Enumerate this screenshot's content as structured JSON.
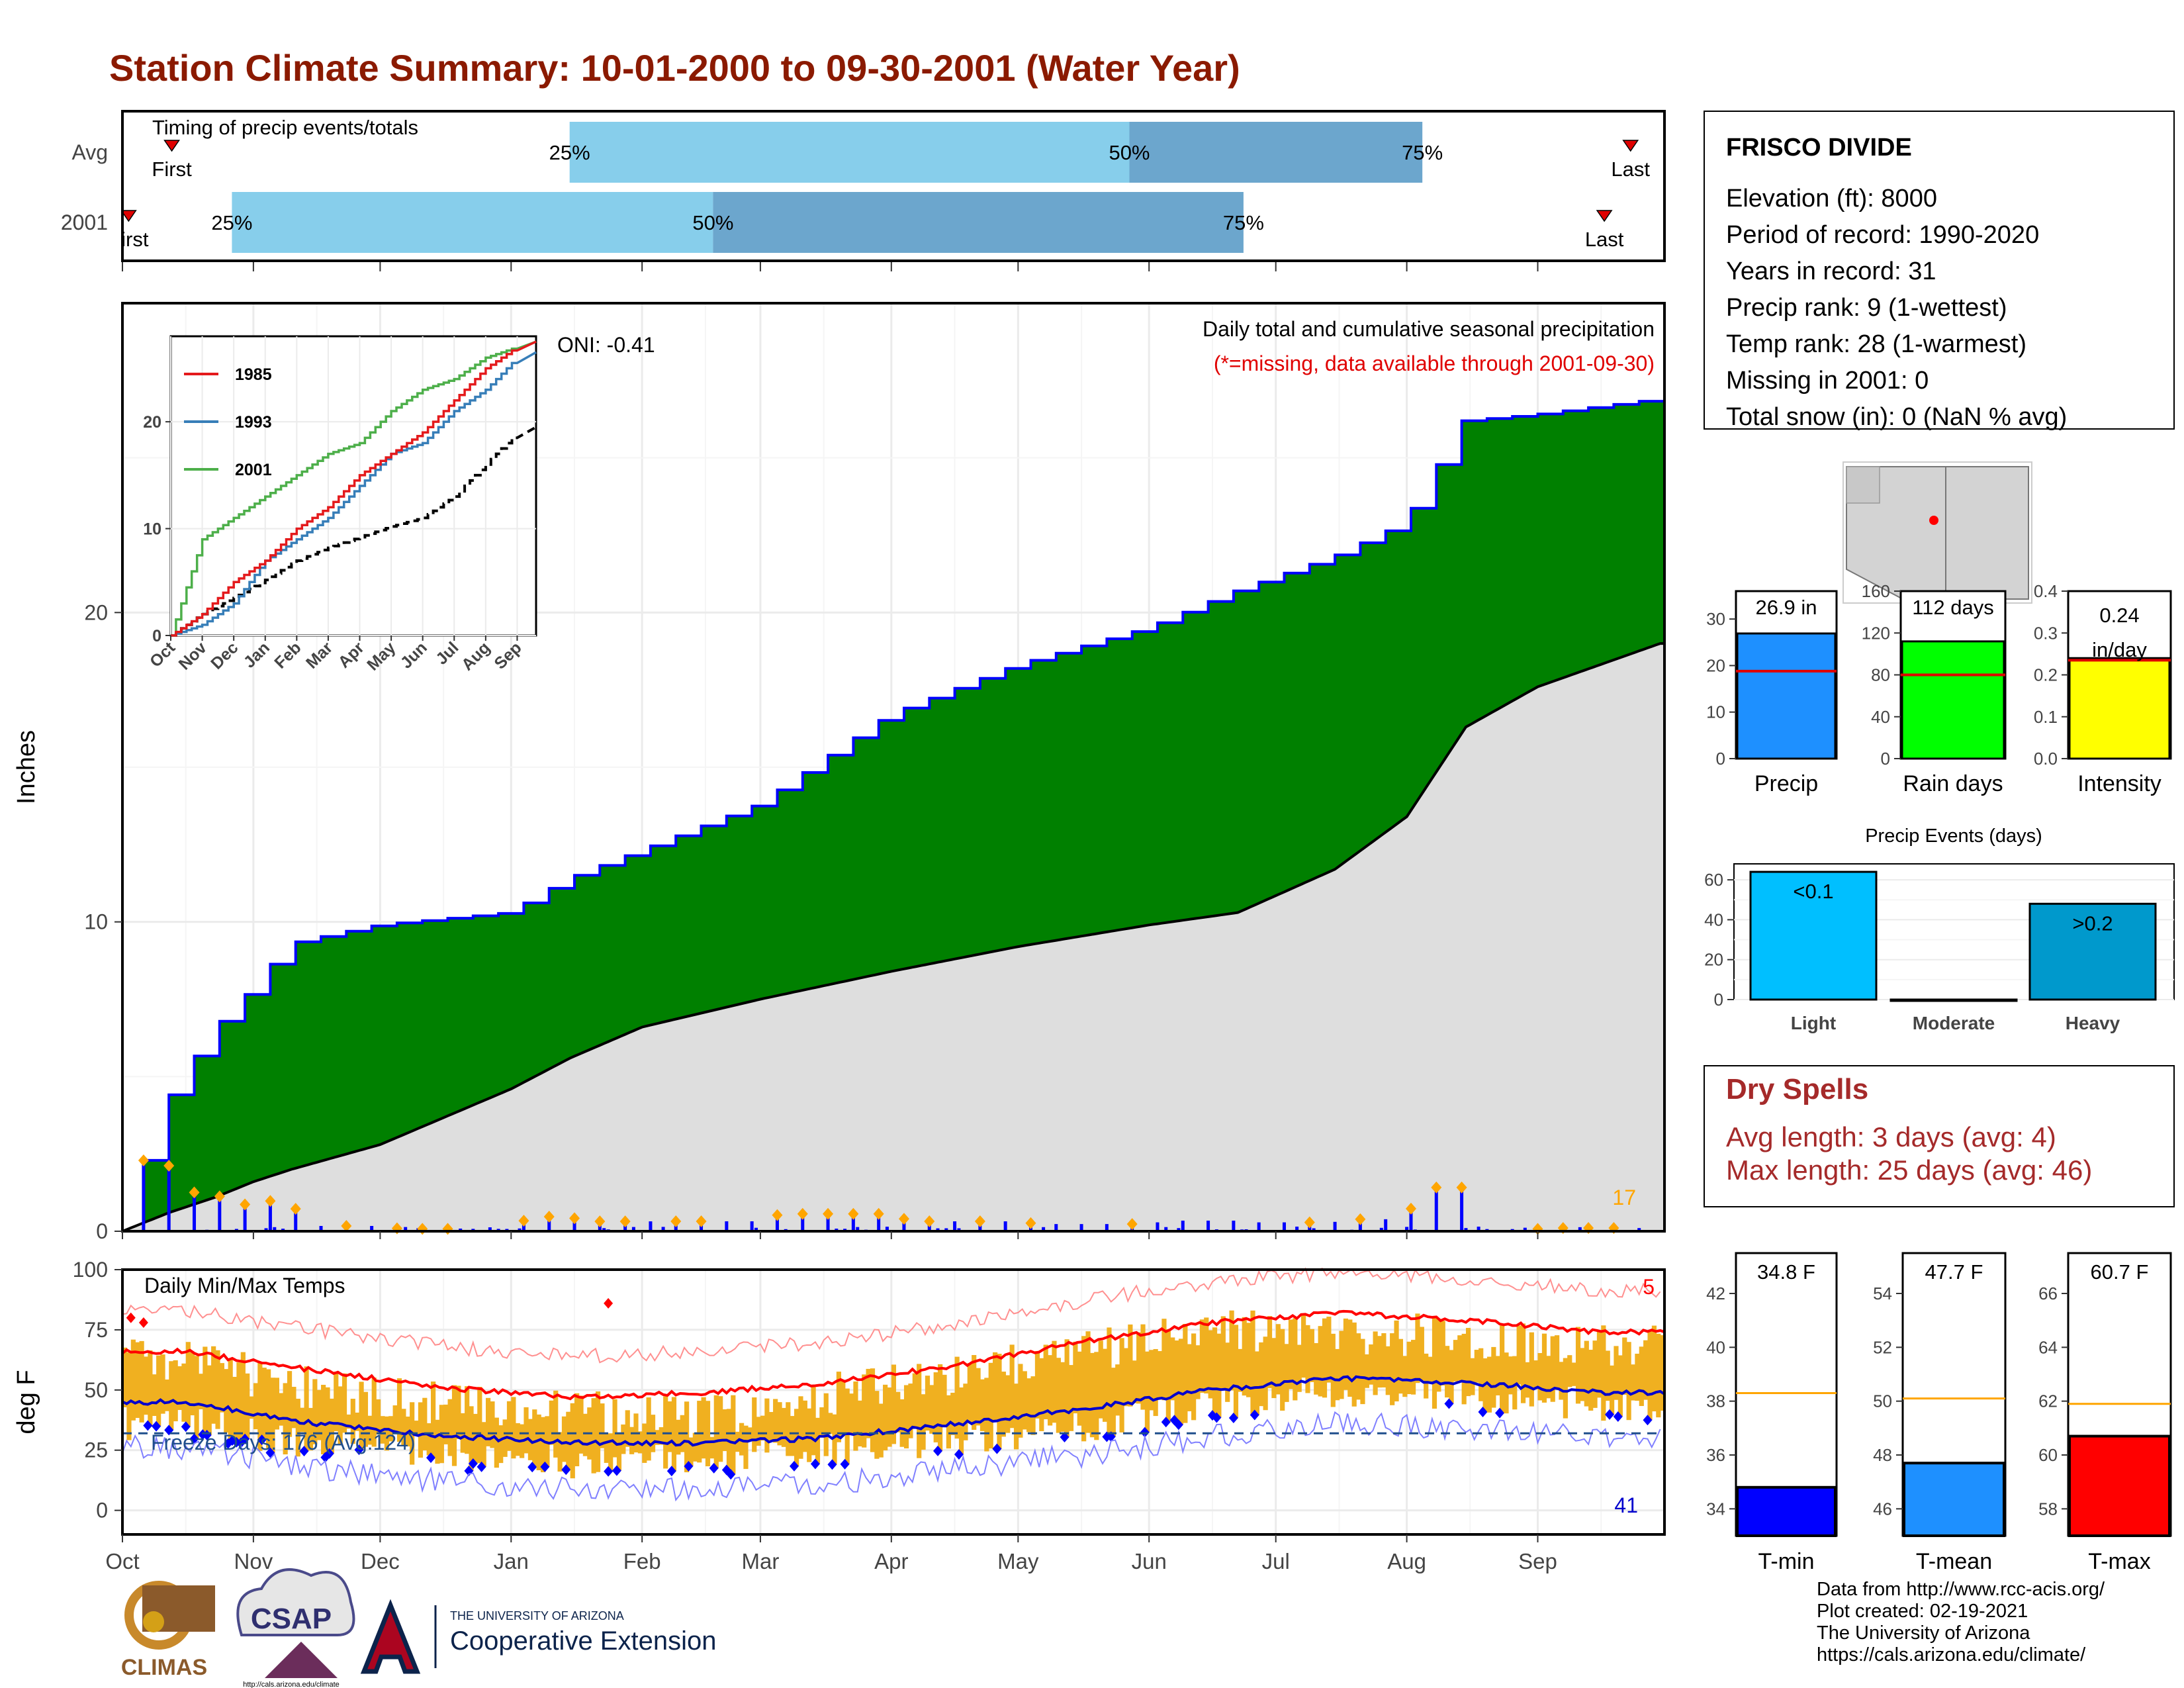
{
  "title": "Station Climate Summary: 10-01-2000 to 09-30-2001 (Water Year)",
  "timing": {
    "title": "Timing of precip events/totals",
    "rows": [
      {
        "label": "Avg",
        "first": 0.032,
        "p25": 0.29,
        "p50": 0.653,
        "p75": 0.843,
        "last": 0.978
      },
      {
        "label": "2001",
        "first": 0.004,
        "p25": 0.071,
        "p50": 0.383,
        "p75": 0.727,
        "last": 0.961
      }
    ],
    "pct_labels": [
      "25%",
      "50%",
      "75%"
    ],
    "first_label": "First",
    "last_label": "Last"
  },
  "station": {
    "name": "FRISCO DIVIDE",
    "lines": [
      "Elevation (ft): 8000",
      "Period of record: 1990-2020",
      "Years in record: 31",
      "Precip rank: 9 (1-wettest)",
      "Temp rank: 28 (1-warmest)",
      "Missing in 2001: 0",
      "Total snow (in): 0 (NaN % avg)"
    ]
  },
  "precip_panel": {
    "ylabel": "Inches",
    "oni": "ONI: -0.41",
    "subtitle": "Daily total and cumulative seasonal precipitation",
    "missing_note": "(*=missing, data available through 2001-09-30)",
    "count_label": "17",
    "yticks": [
      0,
      10,
      20
    ]
  },
  "inset": {
    "xticks": [
      "Oct",
      "Nov",
      "Dec",
      "Jan",
      "Feb",
      "Mar",
      "Apr",
      "May",
      "Jun",
      "Jul",
      "Aug",
      "Sep"
    ],
    "yticks": [
      0,
      10,
      20
    ],
    "legend": [
      "1985",
      "1993",
      "2001"
    ]
  },
  "temp_panel": {
    "ylabel": "deg F",
    "title": "Daily Min/Max Temps",
    "freeze_label": "Freeze Days: 176 (Avg:124)",
    "hot_count": "5",
    "cold_count": "41",
    "yticks": [
      0,
      25,
      50,
      75,
      100
    ]
  },
  "months": [
    "Oct",
    "Nov",
    "Dec",
    "Jan",
    "Feb",
    "Mar",
    "Apr",
    "May",
    "Jun",
    "Jul",
    "Aug",
    "Sep"
  ],
  "summary_bars": [
    {
      "label": "Precip",
      "value": 26.9,
      "value_label": "26.9 in",
      "avg": 18.8,
      "ticks": [
        0,
        10,
        20,
        30
      ],
      "color": "#1E90FF"
    },
    {
      "label": "Rain days",
      "value": 112,
      "value_label": "112 days",
      "avg": 80,
      "ticks": [
        0,
        40,
        80,
        120,
        160
      ],
      "color": "#00FF00"
    },
    {
      "label": "Intensity",
      "value": 0.24,
      "value_label": "0.24 in/day",
      "avg": 0.235,
      "ticks": [
        "0.0",
        "0.1",
        "0.2",
        "0.3",
        "0.4"
      ],
      "color": "#FFFF00"
    }
  ],
  "precip_events": {
    "title": "Precip Events (days)",
    "categories": [
      "Light",
      "Moderate",
      "Heavy"
    ],
    "values": [
      64,
      0,
      48
    ],
    "bar_labels": [
      "<0.1",
      "",
      ">0.2"
    ],
    "yticks": [
      0,
      20,
      40,
      60
    ]
  },
  "dry_spells": {
    "title": "Dry Spells",
    "avg_line": "Avg length: 3 days (avg: 4)",
    "max_line": "Max length: 25 days (avg: 46)"
  },
  "temp_bars": [
    {
      "label": "T-min",
      "value": 34.8,
      "value_label": "34.8 F",
      "avg": 38.3,
      "ticks": [
        34,
        36,
        38,
        40,
        42
      ],
      "color": "#0000FF"
    },
    {
      "label": "T-mean",
      "value": 47.7,
      "value_label": "47.7 F",
      "avg": 50.1,
      "ticks": [
        46,
        48,
        50,
        52,
        54
      ],
      "color": "#1E90FF"
    },
    {
      "label": "T-max",
      "value": 60.7,
      "value_label": "60.7 F",
      "avg": 61.9,
      "ticks": [
        58,
        60,
        62,
        64,
        66
      ],
      "color": "#FF0000"
    }
  ],
  "logos": {
    "climas": "CLIMAS",
    "csap": "CSAP",
    "csap_url": "http://cals.arizona.edu/climate",
    "ua_small": "THE UNIVERSITY OF ARIZONA",
    "ua_large": "Cooperative Extension"
  },
  "footer": [
    "Data from http://www.rcc-acis.org/",
    "Plot created: 02-19-2021",
    "The University of Arizona",
    "https://cals.arizona.edu/climate/"
  ],
  "chart_data": [
    {
      "type": "area",
      "title": "Daily total and cumulative seasonal precipitation",
      "ylabel": "Inches",
      "ylim": [
        0,
        30
      ],
      "x": [
        "2000-10-01",
        "2000-10-12",
        "2000-10-23",
        "2000-11-01",
        "2000-11-10",
        "2000-12-01",
        "2001-01-01",
        "2001-01-15",
        "2001-02-01",
        "2001-03-01",
        "2001-04-01",
        "2001-05-01",
        "2001-06-01",
        "2001-06-22",
        "2001-07-15",
        "2001-08-01",
        "2001-08-15",
        "2001-09-01",
        "2001-09-30"
      ],
      "series": [
        {
          "name": "2001",
          "values": [
            0,
            4.2,
            6.5,
            7.8,
            9.3,
            9.9,
            10.3,
            11.4,
            12.3,
            13.8,
            16.7,
            18.3,
            19.5,
            20.7,
            21.8,
            22.9,
            26.2,
            26.4,
            26.9
          ]
        },
        {
          "values": [
            0,
            0.6,
            1.1,
            1.6,
            2.0,
            2.8,
            4.6,
            5.6,
            6.6,
            7.5,
            8.4,
            9.2,
            9.9,
            10.3,
            11.7,
            13.4,
            16.3,
            17.6,
            19.0
          ]
        }
      ]
    },
    {
      "type": "line",
      "title": "Daily Min/Max Temps",
      "ylabel": "deg F",
      "ylim": [
        -10,
        100
      ],
      "x": [
        "Oct",
        "Nov",
        "Dec",
        "Jan",
        "Feb",
        "Mar",
        "Apr",
        "May",
        "Jun",
        "Jul",
        "Aug",
        "Sep"
      ],
      "series": [
        {
          "values": [
            66,
            58,
            51,
            47,
            49,
            53,
            60,
            70,
            78,
            82,
            79,
            74
          ]
        },
        {
          "values": [
            45,
            36,
            31,
            28,
            28,
            30,
            36,
            42,
            50,
            55,
            53,
            49
          ]
        },
        {
          "values": [
            62,
            50,
            44,
            41,
            39,
            48,
            56,
            66,
            75,
            74,
            72,
            68
          ]
        },
        {
          "values": [
            36,
            28,
            24,
            20,
            21,
            25,
            30,
            34,
            44,
            50,
            48,
            44
          ]
        }
      ]
    }
  ]
}
